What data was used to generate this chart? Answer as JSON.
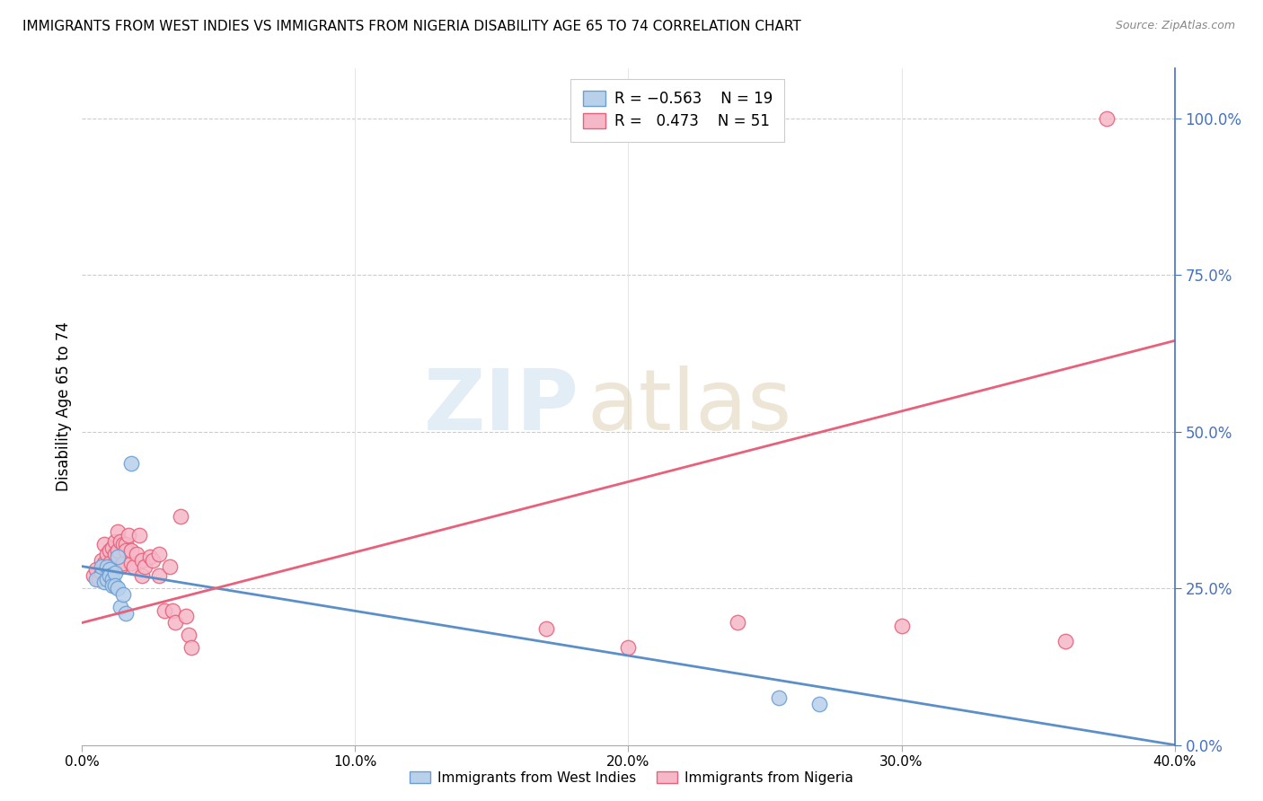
{
  "title": "IMMIGRANTS FROM WEST INDIES VS IMMIGRANTS FROM NIGERIA DISABILITY AGE 65 TO 74 CORRELATION CHART",
  "source": "Source: ZipAtlas.com",
  "ylabel": "Disability Age 65 to 74",
  "xlim": [
    0.0,
    0.4
  ],
  "ylim": [
    0.0,
    1.08
  ],
  "xtick_vals": [
    0.0,
    0.1,
    0.2,
    0.3,
    0.4
  ],
  "xtick_labels": [
    "0.0%",
    "10.0%",
    "20.0%",
    "30.0%",
    "40.0%"
  ],
  "ytick_vals": [
    0.0,
    0.25,
    0.5,
    0.75,
    1.0
  ],
  "ytick_labels": [
    "0.0%",
    "25.0%",
    "50.0%",
    "75.0%",
    "100.0%"
  ],
  "watermark_zip": "ZIP",
  "watermark_atlas": "atlas",
  "blue_fill": "#b8d0ea",
  "blue_edge": "#6b9fd4",
  "pink_fill": "#f5b8c8",
  "pink_edge": "#e8607a",
  "blue_line": "#5b8fc9",
  "pink_line": "#e8607a",
  "legend_label_blue": "Immigrants from West Indies",
  "legend_label_pink": "Immigrants from Nigeria",
  "wi_x": [
    0.005,
    0.007,
    0.008,
    0.009,
    0.009,
    0.01,
    0.01,
    0.011,
    0.011,
    0.012,
    0.012,
    0.013,
    0.013,
    0.014,
    0.015,
    0.016,
    0.018,
    0.255,
    0.27
  ],
  "wi_y": [
    0.265,
    0.285,
    0.26,
    0.285,
    0.265,
    0.28,
    0.27,
    0.265,
    0.255,
    0.275,
    0.255,
    0.3,
    0.25,
    0.22,
    0.24,
    0.21,
    0.45,
    0.075,
    0.065
  ],
  "ng_x": [
    0.004,
    0.005,
    0.006,
    0.007,
    0.007,
    0.008,
    0.008,
    0.009,
    0.009,
    0.01,
    0.01,
    0.01,
    0.011,
    0.011,
    0.012,
    0.012,
    0.013,
    0.013,
    0.014,
    0.014,
    0.015,
    0.015,
    0.016,
    0.016,
    0.017,
    0.018,
    0.018,
    0.019,
    0.02,
    0.021,
    0.022,
    0.022,
    0.023,
    0.025,
    0.026,
    0.028,
    0.028,
    0.03,
    0.032,
    0.033,
    0.034,
    0.036,
    0.038,
    0.039,
    0.04,
    0.17,
    0.2,
    0.24,
    0.3,
    0.36,
    0.375
  ],
  "ng_y": [
    0.27,
    0.28,
    0.265,
    0.295,
    0.275,
    0.32,
    0.29,
    0.305,
    0.275,
    0.31,
    0.29,
    0.27,
    0.315,
    0.285,
    0.325,
    0.305,
    0.34,
    0.31,
    0.325,
    0.285,
    0.32,
    0.29,
    0.32,
    0.31,
    0.335,
    0.29,
    0.31,
    0.285,
    0.305,
    0.335,
    0.27,
    0.295,
    0.285,
    0.3,
    0.295,
    0.305,
    0.27,
    0.215,
    0.285,
    0.215,
    0.195,
    0.365,
    0.205,
    0.175,
    0.155,
    0.185,
    0.155,
    0.195,
    0.19,
    0.165,
    1.0
  ],
  "blue_line_x0": 0.0,
  "blue_line_y0": 0.285,
  "blue_line_x1": 0.4,
  "blue_line_y1": 0.0,
  "pink_line_x0": 0.0,
  "pink_line_y0": 0.195,
  "pink_line_x1": 0.4,
  "pink_line_y1": 0.645
}
